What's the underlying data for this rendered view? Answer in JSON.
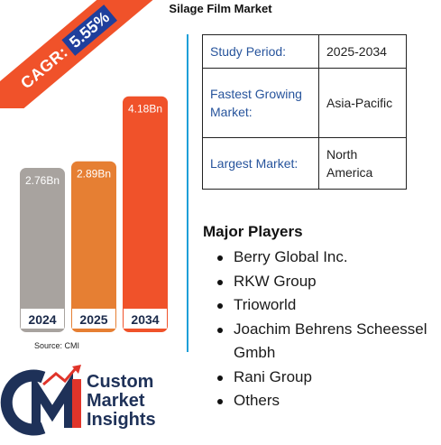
{
  "title": "Silage Film Market",
  "cagr": {
    "label": "CAGR:",
    "value": "5.55%"
  },
  "source": "Source: CMI",
  "colors": {
    "ribbon": "#f0522a",
    "cagr_box": "#1f3f9c",
    "divider": "#1e9fd8",
    "key_text": "#27549c"
  },
  "chart_data": {
    "type": "bar",
    "categories": [
      "2024",
      "2025",
      "2034"
    ],
    "values": [
      2.76,
      2.89,
      4.18
    ],
    "value_labels": [
      "2.76Bn",
      "2.89Bn",
      "4.18Bn"
    ],
    "bar_colors": [
      "#a8a39f",
      "#e67f33",
      "#f0522a"
    ],
    "ylim": [
      0,
      4.3
    ],
    "grid": false
  },
  "info_table": [
    {
      "key": "Study Period:",
      "value": "2025-2034"
    },
    {
      "key": "Fastest Growing Market:",
      "value": "Asia-Pacific"
    },
    {
      "key": "Largest Market:",
      "value": "North America"
    }
  ],
  "players_title": "Major Players",
  "players": [
    "Berry Global Inc.",
    "RKW Group",
    "Trioworld",
    "Joachim Behrens Scheessel Gmbh",
    "Rani Group",
    "Others"
  ],
  "logo": {
    "line1": "Custom",
    "line2": "Market",
    "line3": "Insights",
    "monogram": "CMI"
  }
}
